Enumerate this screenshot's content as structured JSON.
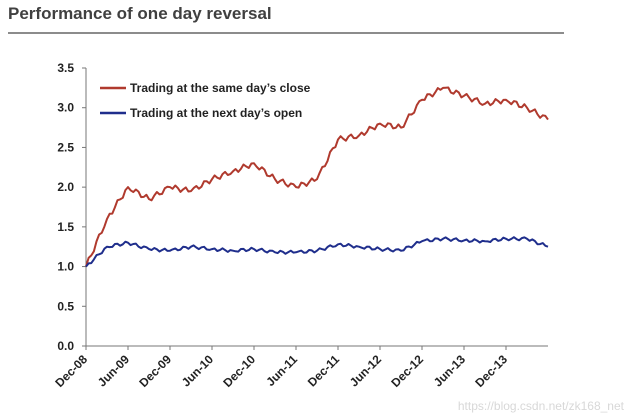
{
  "title": "Performance of one day reversal",
  "watermark": "https://blog.csdn.net/zk168_net",
  "chart_data": {
    "type": "line",
    "title": "Performance of one day reversal",
    "xlabel": "",
    "ylabel": "",
    "ylim": [
      0,
      3.5
    ],
    "yticks": [
      "0.0",
      "0.5",
      "1.0",
      "1.5",
      "2.0",
      "2.5",
      "3.0",
      "3.5"
    ],
    "x_ticks": [
      "Dec-08",
      "Jun-09",
      "Dec-09",
      "Jun-10",
      "Dec-10",
      "Jun-11",
      "Dec-11",
      "Jun-12",
      "Dec-12",
      "Jun-13",
      "Dec-13"
    ],
    "grid": false,
    "legend_position": "top-left",
    "x": [
      "Dec-08",
      "Mar-09",
      "Jun-09",
      "Sep-09",
      "Dec-09",
      "Mar-10",
      "Jun-10",
      "Sep-10",
      "Dec-10",
      "Mar-11",
      "Jun-11",
      "Sep-11",
      "Dec-11",
      "Mar-12",
      "Jun-12",
      "Sep-12",
      "Dec-12",
      "Mar-13",
      "Jun-13",
      "Sep-13",
      "Dec-13",
      "Mar-14",
      "May-14"
    ],
    "series": [
      {
        "name": "Trading at the same day’s close",
        "color": "#b03a2e",
        "values": [
          1.0,
          1.6,
          2.0,
          1.85,
          2.0,
          1.95,
          2.1,
          2.2,
          2.3,
          2.1,
          2.0,
          2.1,
          2.6,
          2.65,
          2.8,
          2.75,
          3.1,
          3.25,
          3.15,
          3.05,
          3.1,
          3.0,
          2.85
        ]
      },
      {
        "name": "Trading at the next day’s open",
        "color": "#1f2e8c",
        "values": [
          1.0,
          1.25,
          1.3,
          1.22,
          1.2,
          1.25,
          1.22,
          1.2,
          1.22,
          1.18,
          1.18,
          1.2,
          1.28,
          1.25,
          1.22,
          1.2,
          1.32,
          1.35,
          1.33,
          1.32,
          1.35,
          1.35,
          1.25
        ]
      }
    ]
  }
}
